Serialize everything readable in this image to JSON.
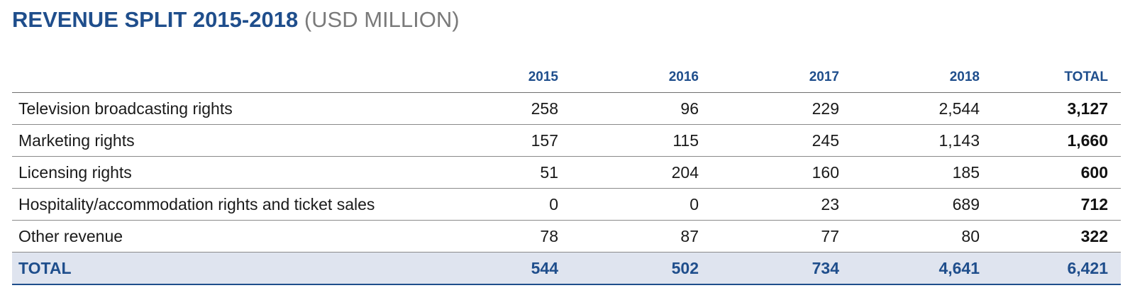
{
  "title": {
    "main": "REVENUE SPLIT 2015-2018",
    "unit": "(USD MILLION)"
  },
  "table": {
    "headers": [
      "",
      "2015",
      "2016",
      "2017",
      "2018",
      "TOTAL"
    ],
    "rows": [
      {
        "label": "Television broadcasting rights",
        "values": [
          "258",
          "96",
          "229",
          "2,544"
        ],
        "total": "3,127"
      },
      {
        "label": "Marketing rights",
        "values": [
          "157",
          "115",
          "245",
          "1,143"
        ],
        "total": "1,660"
      },
      {
        "label": "Licensing rights",
        "values": [
          "51",
          "204",
          "160",
          "185"
        ],
        "total": "600"
      },
      {
        "label": "Hospitality/accommodation rights and ticket sales",
        "values": [
          "0",
          "0",
          "23",
          "689"
        ],
        "total": "712"
      },
      {
        "label": "Other revenue",
        "values": [
          "78",
          "87",
          "77",
          "80"
        ],
        "total": "322"
      }
    ],
    "total_row": {
      "label": "TOTAL",
      "values": [
        "544",
        "502",
        "734",
        "4,641"
      ],
      "total": "6,421"
    }
  },
  "colors": {
    "accent": "#1f4e8c",
    "unit_text": "#7a7a7a",
    "total_row_background": "#dfe4ef"
  }
}
